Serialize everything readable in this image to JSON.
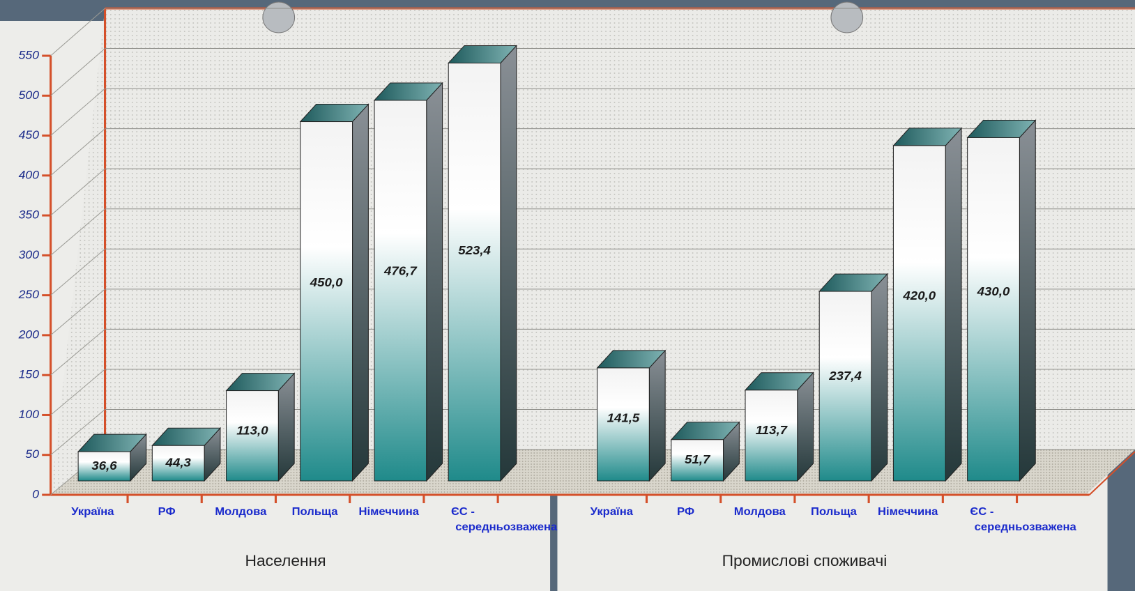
{
  "chart_data": {
    "type": "bar3d",
    "ylim": [
      0,
      550
    ],
    "yticks": [
      0,
      50,
      100,
      150,
      200,
      250,
      300,
      350,
      400,
      450,
      500,
      550
    ],
    "grid": true,
    "color": "#1f8a8a",
    "groups": [
      {
        "name": "Населення",
        "categories": [
          "Україна",
          "РФ",
          "Молдова",
          "Польща",
          "Німеччина",
          "ЄС - середньозважена"
        ],
        "values": [
          36.6,
          44.3,
          113.0,
          450.0,
          476.7,
          523.4
        ],
        "value_labels": [
          "36,6",
          "44,3",
          "113,0",
          "450,0",
          "476,7",
          "523,4"
        ]
      },
      {
        "name": "Промислові споживачі",
        "categories": [
          "Україна",
          "РФ",
          "Молдова",
          "Польща",
          "Німеччина",
          "ЄС - середньозважена"
        ],
        "values": [
          141.5,
          51.7,
          113.7,
          237.4,
          420.0,
          430.0
        ],
        "value_labels": [
          "141,5",
          "51,7",
          "113,7",
          "237,4",
          "420,0",
          "430,0"
        ]
      }
    ]
  }
}
